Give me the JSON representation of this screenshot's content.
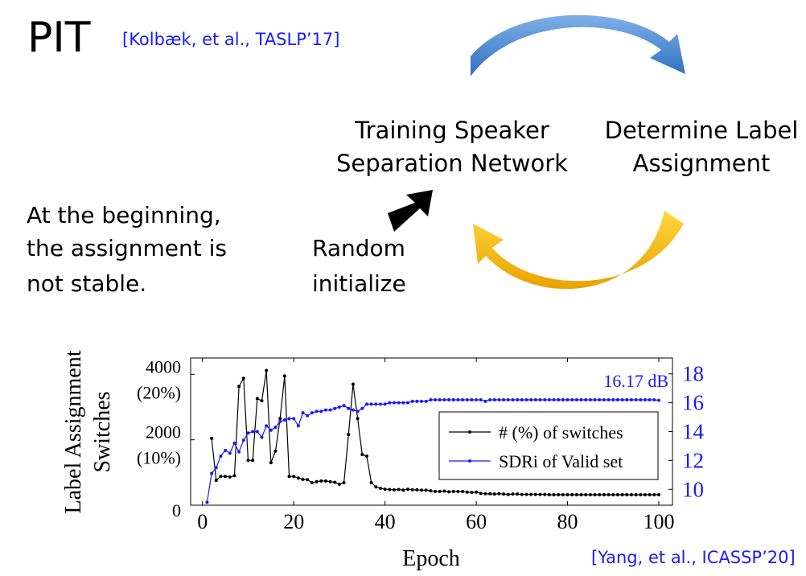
{
  "slide": {
    "title": "PIT",
    "citation": "[Kolbæk, et al., TASLP’17]",
    "left_node": [
      "Training Speaker",
      "Separation Network"
    ],
    "right_node": [
      "Determine Label",
      "Assignment"
    ],
    "note": [
      "At the beginning,",
      "the assignment is",
      "not stable."
    ],
    "start_label": [
      "Random",
      "initialize"
    ],
    "chart_citation": "[Yang, et al., ICASSP’20]"
  },
  "chart_data": {
    "type": "line",
    "x_label": "Epoch",
    "y_label": [
      "Label Assignment",
      "Switches"
    ],
    "annotation": "16.17 dB",
    "x": [
      1,
      2,
      3,
      4,
      5,
      6,
      7,
      8,
      9,
      10,
      11,
      12,
      13,
      14,
      15,
      16,
      17,
      18,
      19,
      20,
      21,
      22,
      23,
      24,
      25,
      26,
      27,
      28,
      29,
      30,
      31,
      32,
      33,
      34,
      35,
      36,
      37,
      38,
      39,
      40,
      41,
      42,
      43,
      44,
      45,
      46,
      47,
      48,
      49,
      50,
      51,
      52,
      53,
      54,
      55,
      56,
      57,
      58,
      59,
      60,
      61,
      62,
      63,
      64,
      65,
      66,
      67,
      68,
      69,
      70,
      71,
      72,
      73,
      74,
      75,
      76,
      77,
      78,
      79,
      80,
      81,
      82,
      83,
      84,
      85,
      86,
      87,
      88,
      89,
      90,
      91,
      92,
      93,
      94,
      95,
      96,
      97,
      98,
      99,
      100
    ],
    "xlim": [
      -2.6,
      103
    ],
    "xticks": [
      0,
      20,
      40,
      60,
      80,
      100
    ],
    "ylim": [
      0,
      4500
    ],
    "yticks": [
      0,
      {
        "value": 2000,
        "label": "2000\n(10%)"
      },
      {
        "value": 4000,
        "label": "4000\n(20%)"
      }
    ],
    "y2lim": [
      8.9,
      19.1
    ],
    "y2ticks": [
      10,
      12,
      14,
      16,
      18
    ],
    "y2_color": "#1a1aff",
    "legend": "center right",
    "series": [
      {
        "name": "# (%) of switches",
        "color": "#000000",
        "axis": "y",
        "values": [
          null,
          2040,
          760,
          880,
          880,
          860,
          900,
          3630,
          3880,
          1370,
          1370,
          3260,
          3190,
          4120,
          1300,
          1650,
          2650,
          3950,
          880,
          880,
          830,
          790,
          780,
          690,
          720,
          740,
          740,
          720,
          700,
          640,
          690,
          2160,
          3700,
          2650,
          1550,
          1500,
          690,
          560,
          515,
          490,
          480,
          470,
          480,
          460,
          490,
          470,
          470,
          460,
          460,
          440,
          420,
          420,
          430,
          410,
          420,
          420,
          420,
          400,
          390,
          400,
          360,
          350,
          350,
          340,
          350,
          340,
          330,
          340,
          340,
          330,
          330,
          330,
          330,
          330,
          330,
          320,
          320,
          320,
          320,
          320,
          320,
          320,
          320,
          320,
          320,
          320,
          320,
          320,
          320,
          320,
          320,
          320,
          320,
          320,
          320,
          320,
          320,
          320,
          320,
          320
        ]
      },
      {
        "name": "SDRi of Valid set",
        "color": "#1a1aff",
        "axis": "y2",
        "values": [
          9.1,
          11.1,
          11.5,
          12.3,
          12.7,
          12.5,
          13.2,
          12.6,
          13.4,
          13.9,
          14.0,
          14.0,
          13.6,
          14.4,
          14.1,
          14.3,
          14.7,
          14.8,
          14.9,
          14.9,
          14.4,
          15.3,
          15.1,
          15.3,
          15.4,
          15.4,
          15.5,
          15.5,
          15.6,
          15.7,
          15.8,
          15.6,
          15.5,
          15.4,
          15.6,
          15.9,
          15.9,
          15.9,
          15.9,
          15.9,
          16.0,
          16.0,
          16.0,
          16.0,
          16.0,
          16.1,
          16.1,
          16.1,
          16.1,
          16.2,
          16.2,
          16.2,
          16.2,
          16.2,
          16.2,
          16.2,
          16.2,
          16.2,
          16.2,
          16.2,
          16.2,
          16.1,
          16.2,
          16.2,
          16.2,
          16.2,
          16.2,
          16.2,
          16.2,
          16.2,
          16.2,
          16.2,
          16.2,
          16.2,
          16.2,
          16.2,
          16.2,
          16.2,
          16.2,
          16.2,
          16.2,
          16.2,
          16.2,
          16.2,
          16.2,
          16.2,
          16.2,
          16.2,
          16.2,
          16.2,
          16.2,
          16.2,
          16.2,
          16.2,
          16.2,
          16.2,
          16.2,
          16.2,
          16.2,
          16.17
        ]
      }
    ]
  }
}
